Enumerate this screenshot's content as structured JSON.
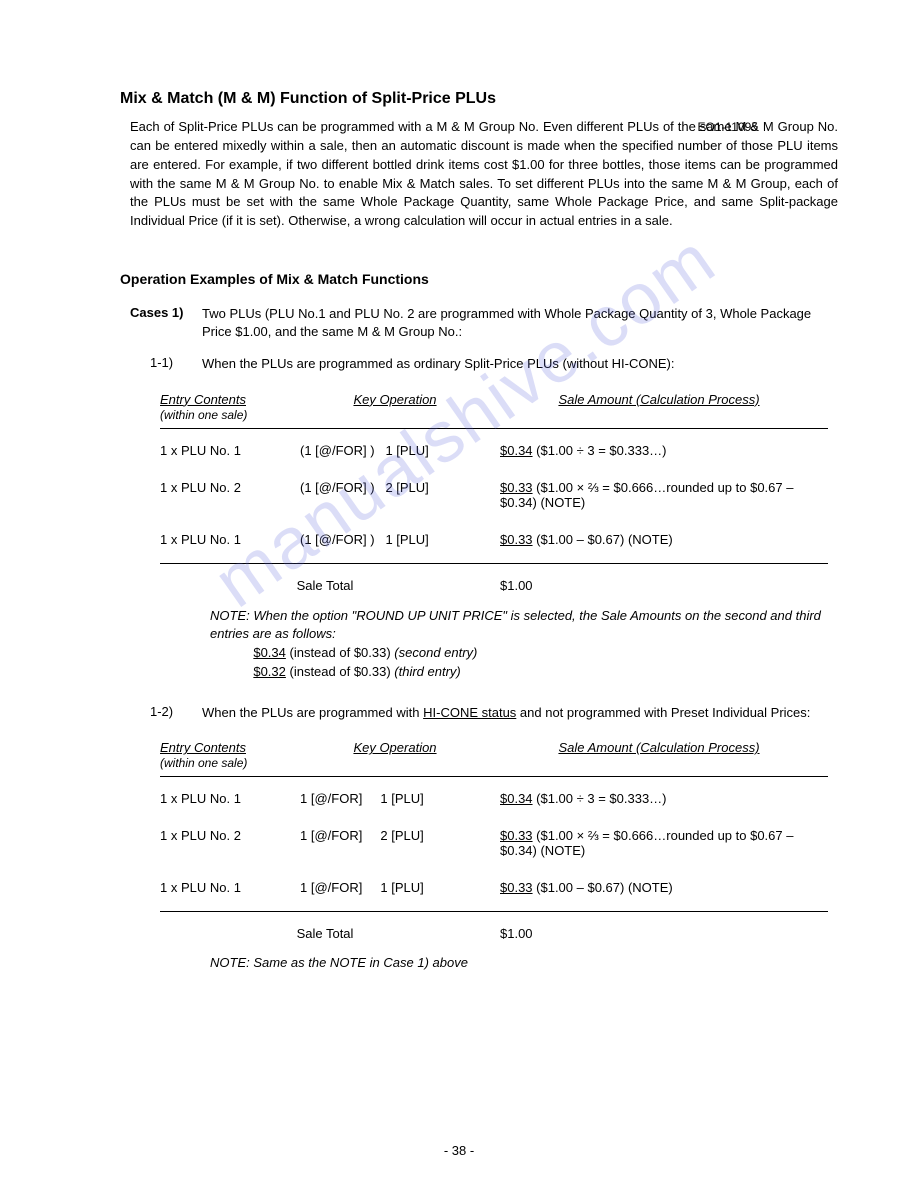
{
  "doc_id": "EO1-11095",
  "title": "Mix & Match (M & M) Function of Split-Price PLUs",
  "intro": "Each of Split-Price PLUs can be programmed with a M & M Group No. Even different PLUs of the same M & M Group No. can be entered mixedly within a sale, then an automatic discount is made when the specified number of those PLU items are entered. For example, if two different bottled drink items cost $1.00 for three bottles, those items can be programmed with the same M & M Group No. to enable Mix & Match sales. To set different PLUs into the same M & M Group, each of the PLUs must be set with the same Whole Package Quantity, same Whole Package Price, and same Split-package Individual Price (if it is set). Otherwise, a wrong calculation will occur in actual entries in a sale.",
  "section_title": "Operation Examples of Mix & Match Functions",
  "cases_label": "Cases 1)",
  "cases_desc": "Two PLUs (PLU No.1 and PLU No. 2 are programmed with Whole Package Quantity of 3, Whole Package Price $1.00, and the same M & M Group No.:",
  "case11_label": "1-1)",
  "case11_desc": "When the PLUs are programmed as ordinary Split-Price PLUs (without HI-CONE):",
  "th_entry": "Entry Contents",
  "th_entry_sub": "(within one sale)",
  "th_key": "Key Operation",
  "th_amt": "Sale Amount (Calculation Process)",
  "t1": {
    "rows": [
      {
        "entry": "1 x PLU No. 1",
        "k1": "(1  [@/FOR] )",
        "k2": "1  [PLU]",
        "amt": "$0.34",
        "calc": " ($1.00 ÷ 3 = $0.333…)"
      },
      {
        "entry": "1 x PLU No. 2",
        "k1": "(1  [@/FOR] )",
        "k2": "2  [PLU]",
        "amt": "$0.33",
        "calc": "   ($1.00 × ⅔ = $0.666…rounded up to $0.67 – $0.34)   (NOTE)"
      },
      {
        "entry": "1 x PLU No. 1",
        "k1": "(1  [@/FOR] )",
        "k2": "1  [PLU]",
        "amt": "$0.33",
        "calc": " ($1.00 – $0.67)   (NOTE)"
      }
    ],
    "total_label": "Sale Total",
    "total_val": "$1.00"
  },
  "note1_label": "NOTE:",
  "note1_l1": "When the option \"ROUND UP UNIT PRICE\" is selected, the Sale Amounts on the second and third entries are as follows:",
  "note1_l2": "$0.34 (instead of $0.33) (second entry)",
  "note1_l3": "$0.32 (instead of $0.33) (third entry)",
  "case12_label": "1-2)",
  "case12_desc_pre": "When the PLUs are programmed with ",
  "case12_desc_u": "HI-CONE status",
  "case12_desc_post": " and not programmed with Preset Individual Prices:",
  "t2": {
    "rows": [
      {
        "entry": "1 x PLU No. 1",
        "k1": "1  [@/FOR]",
        "k2": "1  [PLU]",
        "amt": "$0.34",
        "calc": " ($1.00 ÷ 3 = $0.333…)"
      },
      {
        "entry": "1 x PLU No. 2",
        "k1": "1  [@/FOR]",
        "k2": "2  [PLU]",
        "amt": "$0.33",
        "calc": "   ($1.00 × ⅔ = $0.666…rounded up to $0.67 – $0.34)   (NOTE)"
      },
      {
        "entry": "1 x PLU No. 1",
        "k1": "1  [@/FOR]",
        "k2": "1  [PLU]",
        "amt": "$0.33",
        "calc": " ($1.00 – $0.67)   (NOTE)"
      }
    ],
    "total_label": "Sale Total",
    "total_val": "$1.00"
  },
  "note2": "NOTE:  Same as the NOTE in Case 1) above",
  "page_num": "- 38 -",
  "watermark": "manualshive.com"
}
